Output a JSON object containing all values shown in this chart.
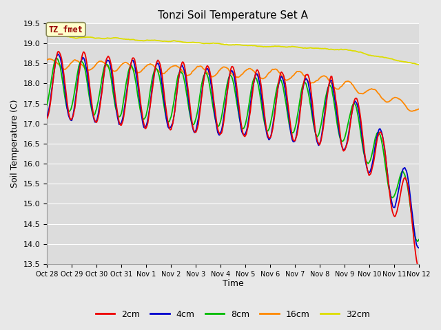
{
  "title": "Tonzi Soil Temperature Set A",
  "xlabel": "Time",
  "ylabel": "Soil Temperature (C)",
  "annotation_text": "TZ_fmet",
  "annotation_bg": "#FFFFCC",
  "annotation_border": "#888855",
  "annotation_color": "#990000",
  "ylim": [
    13.5,
    19.5
  ],
  "yticks": [
    13.5,
    14.0,
    14.5,
    15.0,
    15.5,
    16.0,
    16.5,
    17.0,
    17.5,
    18.0,
    18.5,
    19.0,
    19.5
  ],
  "fig_bg": "#E8E8E8",
  "plot_bg": "#DCDCDC",
  "grid_color": "#FFFFFF",
  "line_colors": {
    "2cm": "#EE0000",
    "4cm": "#0000CC",
    "8cm": "#00BB00",
    "16cm": "#FF8800",
    "32cm": "#DDDD00"
  },
  "legend_labels": [
    "2cm",
    "4cm",
    "8cm",
    "16cm",
    "32cm"
  ],
  "x_tick_labels": [
    "Oct 28",
    "Oct 29",
    "Oct 30",
    "Oct 31",
    "Nov 1",
    "Nov 2",
    "Nov 3",
    "Nov 4",
    "Nov 5",
    "Nov 6",
    "Nov 7",
    "Nov 8",
    "Nov 9",
    "Nov 10",
    "Nov 11",
    "Nov 12"
  ],
  "num_points": 480
}
